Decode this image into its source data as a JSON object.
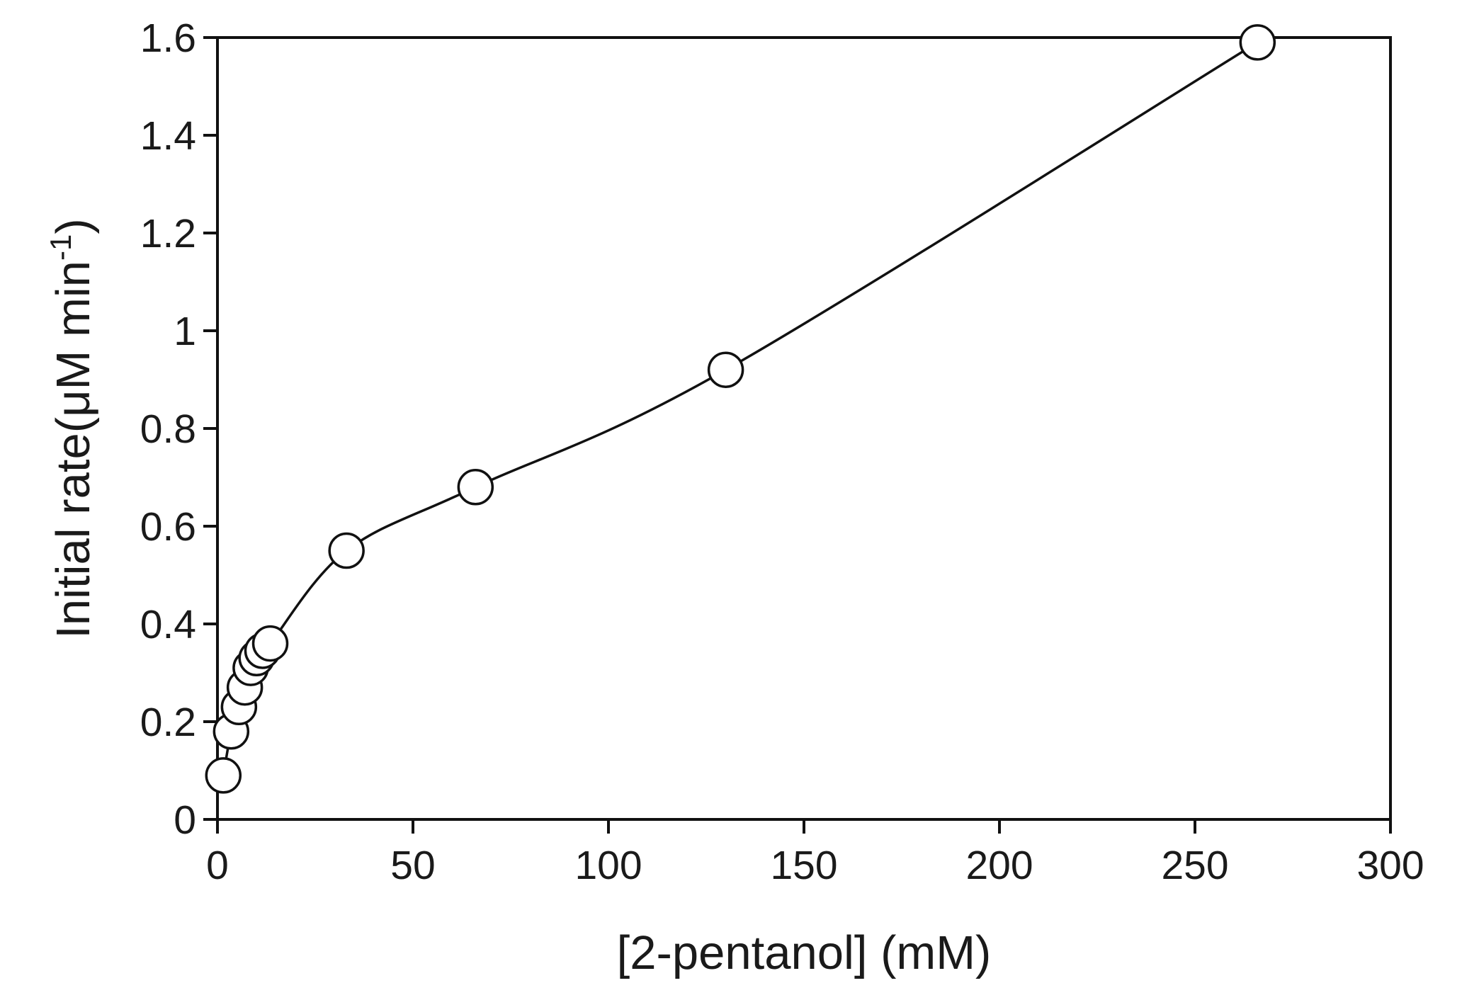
{
  "chart_data": {
    "type": "scatter",
    "title": "",
    "xlabel": "[2-pentanol] (mM)",
    "ylabel_main": "Initial rate(μM min",
    "ylabel_sup": "-1",
    "ylabel_close": ")",
    "xlim": [
      0,
      300
    ],
    "ylim": [
      0,
      1.6
    ],
    "x_ticks": [
      0,
      50,
      100,
      150,
      200,
      250,
      300
    ],
    "y_ticks": [
      0,
      0.2,
      0.4,
      0.6,
      0.8,
      1,
      1.2,
      1.4,
      1.6
    ],
    "x_tick_labels": [
      "0",
      "50",
      "100",
      "150",
      "200",
      "250",
      "300"
    ],
    "y_tick_labels": [
      "0",
      "0.2",
      "0.4",
      "0.6",
      "0.8",
      "1",
      "1.2",
      "1.4",
      "1.6"
    ],
    "grid": false,
    "legend": "none",
    "marker": "open-circle",
    "connected_line": true,
    "series": [
      {
        "x": [
          1.5,
          3.5,
          5.5,
          7,
          8.5,
          10,
          11.5,
          13.5,
          33,
          66,
          130,
          266
        ],
        "y": [
          0.09,
          0.18,
          0.23,
          0.27,
          0.31,
          0.33,
          0.345,
          0.36,
          0.55,
          0.68,
          0.92,
          1.59
        ]
      }
    ],
    "colors": {
      "axis": "#111111",
      "line": "#111111",
      "marker_fill": "#ffffff",
      "marker_stroke": "#111111"
    }
  }
}
